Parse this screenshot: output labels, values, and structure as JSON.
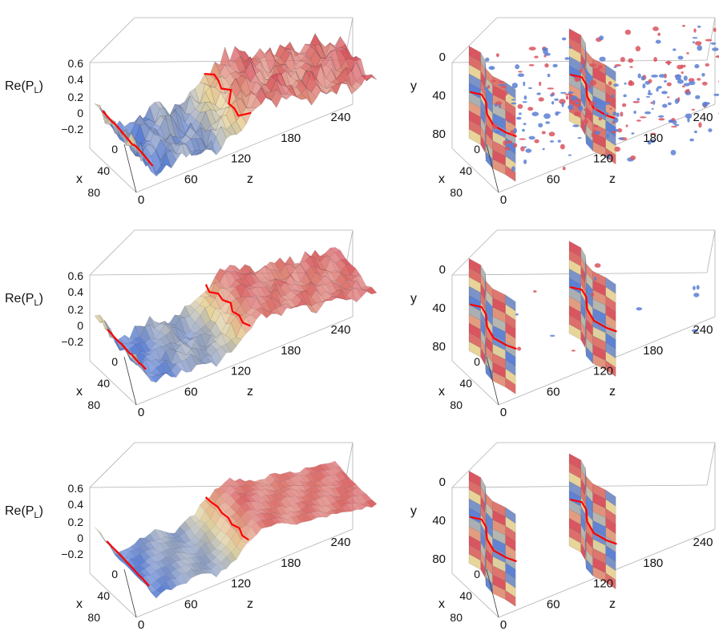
{
  "colors": {
    "low": "#5b7fd4",
    "mid": "#e8d59a",
    "high": "#d9535e",
    "interface": "#ff0000",
    "box": "#b0b0b0"
  },
  "labels": {
    "re_main": "Re(P",
    "re_sub": "L",
    "re_close": ")",
    "x": "x",
    "y": "y",
    "z": "z"
  },
  "chart_data": [
    {
      "type": "surface3d",
      "panel": "left-top",
      "x_axis": {
        "label": "x",
        "ticks": [
          "0",
          "40",
          "80"
        ]
      },
      "z_axis": {
        "label": "z",
        "ticks": [
          "0",
          "60",
          "120",
          "180",
          "240"
        ]
      },
      "value_axis": {
        "label": "Re(P_L)",
        "ticks": [
          "0.6",
          "0.4",
          "0.2",
          "0",
          "−0.2"
        ]
      },
      "profile": [
        [
          0,
          0.22
        ],
        [
          10,
          0.05
        ],
        [
          20,
          -0.15
        ],
        [
          40,
          -0.05
        ],
        [
          60,
          0.05
        ],
        [
          80,
          0.0
        ],
        [
          100,
          0.18
        ],
        [
          110,
          0.35
        ],
        [
          130,
          0.55
        ],
        [
          160,
          0.5
        ],
        [
          200,
          0.52
        ],
        [
          240,
          0.55
        ]
      ],
      "roughness": 1.0
    },
    {
      "type": "isosurface3d",
      "panel": "right-top",
      "x_axis": {
        "label": "x",
        "ticks": [
          "0",
          "40",
          "80"
        ]
      },
      "y_axis": {
        "label": "y",
        "ticks": [
          "0",
          "40",
          "80"
        ]
      },
      "z_axis": {
        "label": "z",
        "ticks": [
          "0",
          "60",
          "120",
          "180",
          "240"
        ]
      },
      "walls_z": [
        12,
        112
      ],
      "blobs": "many"
    },
    {
      "type": "surface3d",
      "panel": "left-middle",
      "x_axis": {
        "label": "x",
        "ticks": [
          "0",
          "40",
          "80"
        ]
      },
      "z_axis": {
        "label": "z",
        "ticks": [
          "0",
          "60",
          "120",
          "180",
          "240"
        ]
      },
      "value_axis": {
        "label": "Re(P_L)",
        "ticks": [
          "0.6",
          "0.4",
          "0.2",
          "0",
          "−0.2"
        ]
      },
      "profile": [
        [
          0,
          0.22
        ],
        [
          10,
          0.05
        ],
        [
          20,
          -0.15
        ],
        [
          40,
          -0.05
        ],
        [
          60,
          0.05
        ],
        [
          80,
          0.0
        ],
        [
          100,
          0.18
        ],
        [
          110,
          0.35
        ],
        [
          130,
          0.55
        ],
        [
          160,
          0.5
        ],
        [
          200,
          0.52
        ],
        [
          240,
          0.55
        ]
      ],
      "roughness": 0.6
    },
    {
      "type": "isosurface3d",
      "panel": "right-middle",
      "x_axis": {
        "label": "x",
        "ticks": [
          "0",
          "40",
          "80"
        ]
      },
      "y_axis": {
        "label": "y",
        "ticks": [
          "0",
          "40",
          "80"
        ]
      },
      "z_axis": {
        "label": "z",
        "ticks": [
          "0",
          "60",
          "120",
          "180",
          "240"
        ]
      },
      "walls_z": [
        12,
        112
      ],
      "blobs": "few"
    },
    {
      "type": "surface3d",
      "panel": "left-bottom",
      "x_axis": {
        "label": "x",
        "ticks": [
          "0",
          "40",
          "80"
        ]
      },
      "z_axis": {
        "label": "z",
        "ticks": [
          "0",
          "60",
          "120",
          "180",
          "240"
        ]
      },
      "value_axis": {
        "label": "Re(P_L)",
        "ticks": [
          "0.6",
          "0.4",
          "0.2",
          "0",
          "−0.2"
        ]
      },
      "profile": [
        [
          0,
          0.22
        ],
        [
          10,
          0.05
        ],
        [
          20,
          -0.15
        ],
        [
          40,
          -0.05
        ],
        [
          60,
          0.05
        ],
        [
          80,
          0.0
        ],
        [
          100,
          0.18
        ],
        [
          110,
          0.35
        ],
        [
          130,
          0.55
        ],
        [
          160,
          0.5
        ],
        [
          200,
          0.52
        ],
        [
          240,
          0.55
        ]
      ],
      "roughness": 0.25
    },
    {
      "type": "isosurface3d",
      "panel": "right-bottom",
      "x_axis": {
        "label": "x",
        "ticks": [
          "0",
          "40",
          "80"
        ]
      },
      "y_axis": {
        "label": "y",
        "ticks": [
          "0",
          "40",
          "80"
        ]
      },
      "z_axis": {
        "label": "z",
        "ticks": [
          "0",
          "60",
          "120",
          "180",
          "240"
        ]
      },
      "walls_z": [
        12,
        112
      ],
      "blobs": "none"
    }
  ]
}
